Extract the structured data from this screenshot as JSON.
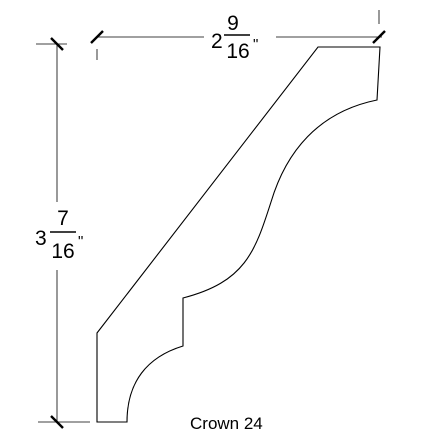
{
  "drawing": {
    "profile_name": "Crown 24",
    "width_dimension": {
      "whole": "2",
      "numerator": "9",
      "denominator": "16",
      "unit": "\""
    },
    "height_dimension": {
      "whole": "3",
      "numerator": "7",
      "denominator": "16",
      "unit": "\""
    },
    "line_color": "#000000",
    "background_color": "#ffffff"
  }
}
